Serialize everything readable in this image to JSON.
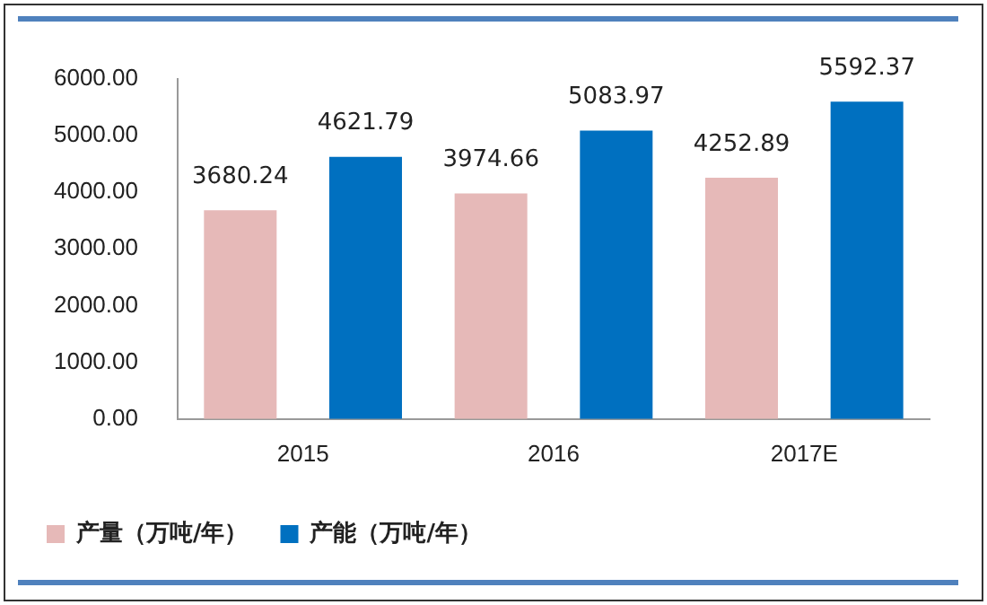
{
  "chart_data": {
    "type": "bar",
    "categories": [
      "2015",
      "2016",
      "2017E"
    ],
    "series": [
      {
        "name": "产量（万吨/年）",
        "color": "#e6b9b8",
        "values": [
          3680.24,
          3974.66,
          4252.89
        ]
      },
      {
        "name": "产能（万吨/年）",
        "color": "#0070c0",
        "values": [
          4621.79,
          5083.97,
          5592.37
        ]
      }
    ],
    "ylim": [
      0,
      6000
    ],
    "yticks": [
      {
        "value": 0,
        "label": "0.00"
      },
      {
        "value": 1000,
        "label": "1000.00"
      },
      {
        "value": 2000,
        "label": "2000.00"
      },
      {
        "value": 3000,
        "label": "3000.00"
      },
      {
        "value": 4000,
        "label": "4000.00"
      },
      {
        "value": 5000,
        "label": "5000.00"
      },
      {
        "value": 6000,
        "label": "6000.00"
      }
    ],
    "grid": false,
    "legend": "bottom",
    "data_labels": true
  }
}
